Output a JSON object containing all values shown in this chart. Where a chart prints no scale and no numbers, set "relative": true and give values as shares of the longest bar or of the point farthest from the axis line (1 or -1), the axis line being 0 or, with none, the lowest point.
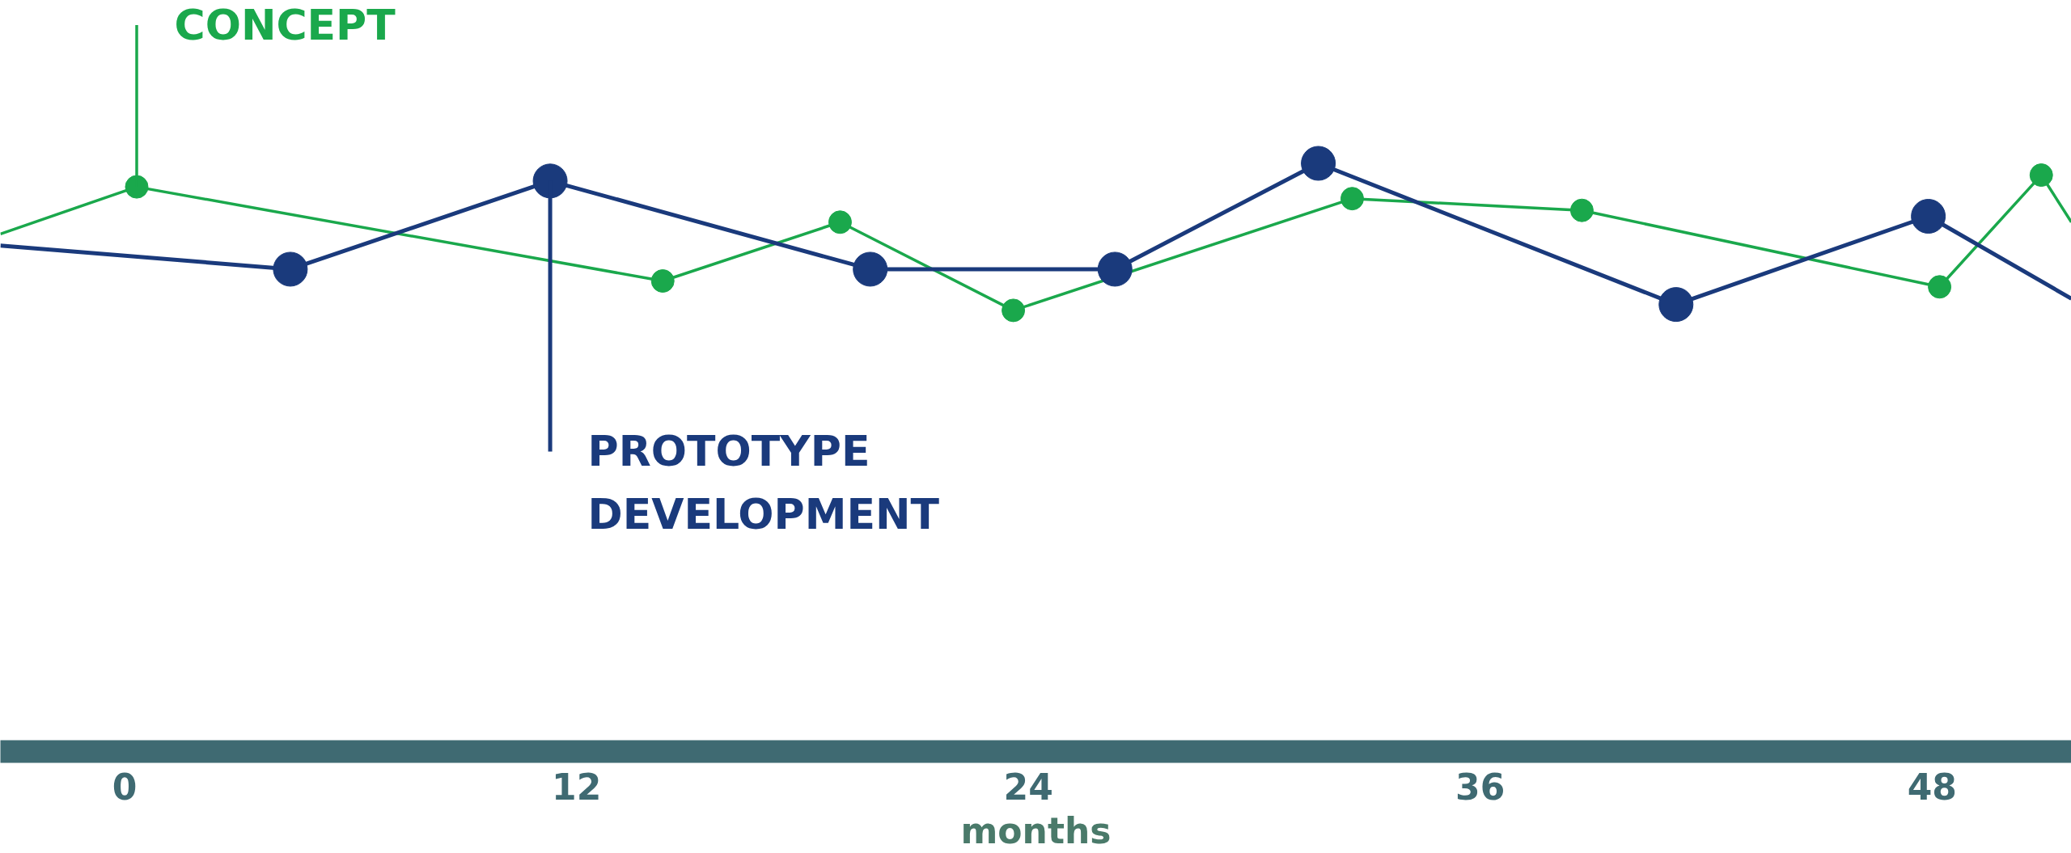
{
  "chart_data": {
    "type": "line",
    "relative": true,
    "xlabel": "months",
    "xlim": [
      -3.3,
      51.7
    ],
    "xticks": [
      0,
      12,
      24,
      36,
      48
    ],
    "grid": false,
    "legend": false,
    "marker": "circle",
    "line_style": "solid",
    "tick_labels": "x",
    "series": [
      {
        "color": "#1aa84c",
        "x": [
          -3.3,
          0.32,
          14.29,
          19.0,
          23.6,
          32.6,
          38.7,
          48.2,
          50.9,
          51.7
        ],
        "values": [
          0.88,
          0.96,
          0.8,
          0.9,
          0.75,
          0.94,
          0.92,
          0.79,
          0.98,
          0.9
        ]
      },
      {
        "color": "#1a3a7c",
        "x": [
          -3.3,
          4.4,
          11.3,
          19.8,
          26.3,
          31.7,
          41.2,
          47.9,
          51.7
        ],
        "values": [
          0.86,
          0.82,
          0.97,
          0.82,
          0.82,
          1,
          0.76,
          0.91,
          0.77
        ]
      }
    ],
    "annotations": [
      {
        "text": "CONCEPT",
        "x": 0.32,
        "y": 0.96
      },
      {
        "text": "PROTOTYPE\nDEVELOPMENT",
        "x": 11.3,
        "y": 0.97
      }
    ]
  }
}
